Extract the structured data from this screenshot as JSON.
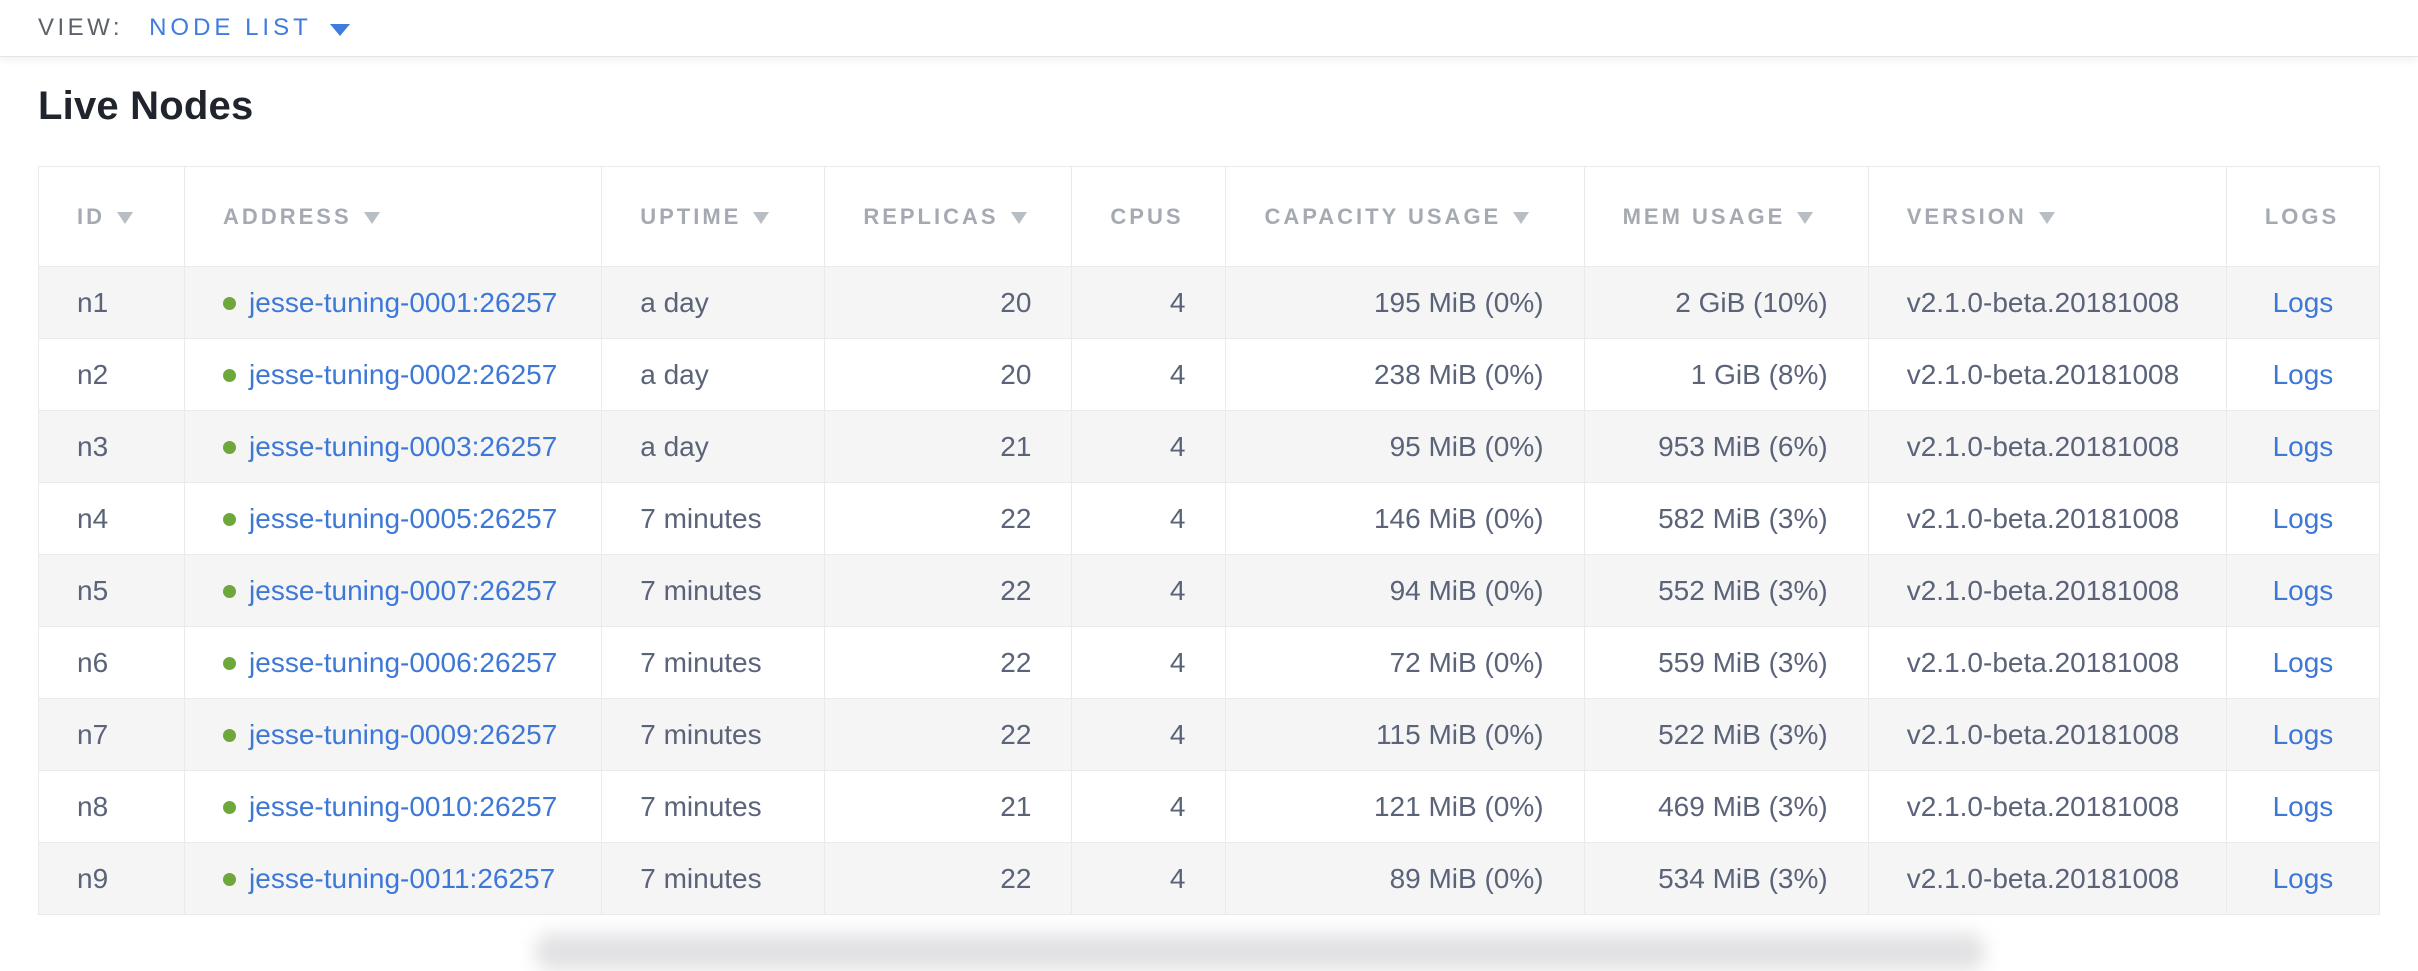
{
  "view_bar": {
    "label": "VIEW:",
    "selected_view": "NODE LIST"
  },
  "page": {
    "title": "Live Nodes"
  },
  "nodes_table": {
    "columns": [
      {
        "key": "id",
        "label": "ID",
        "sort_arrow": true
      },
      {
        "key": "address",
        "label": "ADDRESS",
        "sort_arrow": true
      },
      {
        "key": "uptime",
        "label": "UPTIME",
        "sort_arrow": true
      },
      {
        "key": "replicas",
        "label": "REPLICAS",
        "sort_arrow": true
      },
      {
        "key": "cpus",
        "label": "CPUS",
        "sort_arrow": false
      },
      {
        "key": "capacity_usage",
        "label": "CAPACITY USAGE",
        "sort_arrow": true
      },
      {
        "key": "mem_usage",
        "label": "MEM USAGE",
        "sort_arrow": true
      },
      {
        "key": "version",
        "label": "VERSION",
        "sort_arrow": true
      },
      {
        "key": "logs",
        "label": "LOGS",
        "sort_arrow": false
      }
    ],
    "rows": [
      {
        "id": "n1",
        "address": "jesse-tuning-0001:26257",
        "uptime": "a day",
        "replicas": "20",
        "cpus": "4",
        "capacity_usage": "195 MiB (0%)",
        "mem_usage": "2 GiB (10%)",
        "version": "v2.1.0-beta.20181008",
        "logs": "Logs"
      },
      {
        "id": "n2",
        "address": "jesse-tuning-0002:26257",
        "uptime": "a day",
        "replicas": "20",
        "cpus": "4",
        "capacity_usage": "238 MiB (0%)",
        "mem_usage": "1 GiB (8%)",
        "version": "v2.1.0-beta.20181008",
        "logs": "Logs"
      },
      {
        "id": "n3",
        "address": "jesse-tuning-0003:26257",
        "uptime": "a day",
        "replicas": "21",
        "cpus": "4",
        "capacity_usage": "95 MiB (0%)",
        "mem_usage": "953 MiB (6%)",
        "version": "v2.1.0-beta.20181008",
        "logs": "Logs"
      },
      {
        "id": "n4",
        "address": "jesse-tuning-0005:26257",
        "uptime": "7 minutes",
        "replicas": "22",
        "cpus": "4",
        "capacity_usage": "146 MiB (0%)",
        "mem_usage": "582 MiB (3%)",
        "version": "v2.1.0-beta.20181008",
        "logs": "Logs"
      },
      {
        "id": "n5",
        "address": "jesse-tuning-0007:26257",
        "uptime": "7 minutes",
        "replicas": "22",
        "cpus": "4",
        "capacity_usage": "94 MiB (0%)",
        "mem_usage": "552 MiB (3%)",
        "version": "v2.1.0-beta.20181008",
        "logs": "Logs"
      },
      {
        "id": "n6",
        "address": "jesse-tuning-0006:26257",
        "uptime": "7 minutes",
        "replicas": "22",
        "cpus": "4",
        "capacity_usage": "72 MiB (0%)",
        "mem_usage": "559 MiB (3%)",
        "version": "v2.1.0-beta.20181008",
        "logs": "Logs"
      },
      {
        "id": "n7",
        "address": "jesse-tuning-0009:26257",
        "uptime": "7 minutes",
        "replicas": "22",
        "cpus": "4",
        "capacity_usage": "115 MiB (0%)",
        "mem_usage": "522 MiB (3%)",
        "version": "v2.1.0-beta.20181008",
        "logs": "Logs"
      },
      {
        "id": "n8",
        "address": "jesse-tuning-0010:26257",
        "uptime": "7 minutes",
        "replicas": "21",
        "cpus": "4",
        "capacity_usage": "121 MiB (0%)",
        "mem_usage": "469 MiB (3%)",
        "version": "v2.1.0-beta.20181008",
        "logs": "Logs"
      },
      {
        "id": "n9",
        "address": "jesse-tuning-0011:26257",
        "uptime": "7 minutes",
        "replicas": "22",
        "cpus": "4",
        "capacity_usage": "89 MiB (0%)",
        "mem_usage": "534 MiB (3%)",
        "version": "v2.1.0-beta.20181008",
        "logs": "Logs"
      }
    ]
  },
  "colors": {
    "link_blue": "#3d78d7",
    "accent_blue": "#3e7ce0",
    "live_node_green": "#6ea83c",
    "header_gray": "#a5aab2",
    "cell_text": "#5a6378",
    "row_stripe": "#f5f5f6"
  }
}
